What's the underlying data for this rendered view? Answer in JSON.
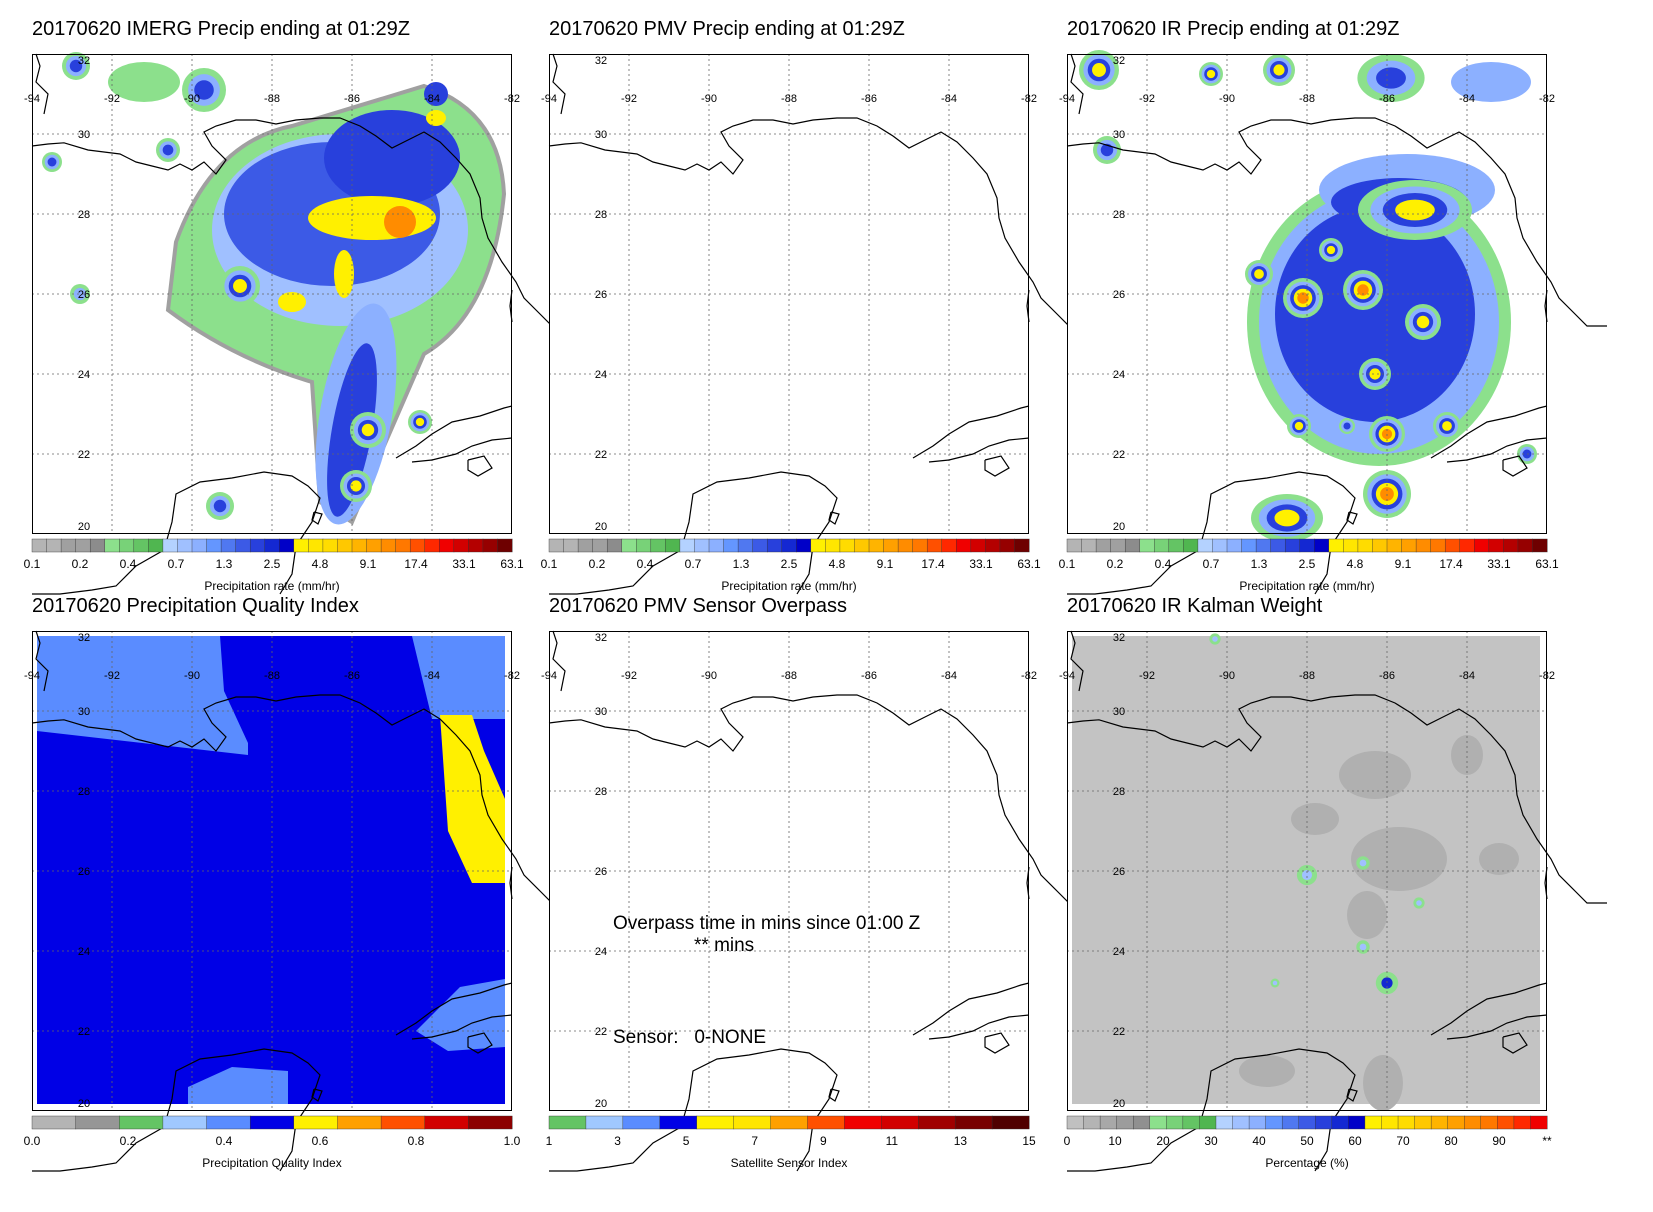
{
  "panels": [
    {
      "id": "imerg",
      "title": "20170620 IMERG Precip ending at 01:29Z",
      "colorbar_label": "Precipitation rate (mm/hr)",
      "ticks": [
        "0.1",
        "0.2",
        "0.4",
        "0.7",
        "1.3",
        "2.5",
        "4.8",
        "9.1",
        "17.4",
        "33.1",
        "63.1"
      ],
      "colors": [
        "#b4b4b4",
        "#b4b4b4",
        "#a0a0a0",
        "#a0a0a0",
        "#8c8c8c",
        "#8ce08c",
        "#78d278",
        "#64c464",
        "#50b650",
        "#b4d2ff",
        "#a0c0ff",
        "#8cb0ff",
        "#6496ff",
        "#5078f0",
        "#3c5ae6",
        "#2840dc",
        "#1428d2",
        "#0000c8",
        "#fff000",
        "#ffe600",
        "#ffdc00",
        "#ffc800",
        "#ffb400",
        "#ffa000",
        "#ff8c00",
        "#ff7800",
        "#ff5000",
        "#ff2800",
        "#f00000",
        "#d20000",
        "#b40000",
        "#960000",
        "#6e0000"
      ],
      "basemap": "plain",
      "fill": "precip"
    },
    {
      "id": "pmv",
      "title": "20170620 PMV Precip ending at 01:29Z",
      "colorbar_label": "Precipitation rate (mm/hr)",
      "ticks": [
        "0.1",
        "0.2",
        "0.4",
        "0.7",
        "1.3",
        "2.5",
        "4.8",
        "9.1",
        "17.4",
        "33.1",
        "63.1"
      ],
      "colors": [
        "#b4b4b4",
        "#b4b4b4",
        "#a0a0a0",
        "#a0a0a0",
        "#8c8c8c",
        "#8ce08c",
        "#78d278",
        "#64c464",
        "#50b650",
        "#b4d2ff",
        "#a0c0ff",
        "#8cb0ff",
        "#6496ff",
        "#5078f0",
        "#3c5ae6",
        "#2840dc",
        "#1428d2",
        "#0000c8",
        "#fff000",
        "#ffe600",
        "#ffdc00",
        "#ffc800",
        "#ffb400",
        "#ffa000",
        "#ff8c00",
        "#ff7800",
        "#ff5000",
        "#ff2800",
        "#f00000",
        "#d20000",
        "#b40000",
        "#960000",
        "#6e0000"
      ],
      "basemap": "plain",
      "fill": "none"
    },
    {
      "id": "ir",
      "title": "20170620 IR Precip ending at 01:29Z",
      "colorbar_label": "Precipitation rate (mm/hr)",
      "ticks": [
        "0.1",
        "0.2",
        "0.4",
        "0.7",
        "1.3",
        "2.5",
        "4.8",
        "9.1",
        "17.4",
        "33.1",
        "63.1"
      ],
      "colors": [
        "#b4b4b4",
        "#b4b4b4",
        "#a0a0a0",
        "#a0a0a0",
        "#8c8c8c",
        "#8ce08c",
        "#78d278",
        "#64c464",
        "#50b650",
        "#b4d2ff",
        "#a0c0ff",
        "#8cb0ff",
        "#6496ff",
        "#5078f0",
        "#3c5ae6",
        "#2840dc",
        "#1428d2",
        "#0000c8",
        "#fff000",
        "#ffe600",
        "#ffdc00",
        "#ffc800",
        "#ffb400",
        "#ffa000",
        "#ff8c00",
        "#ff7800",
        "#ff5000",
        "#ff2800",
        "#f00000",
        "#d20000",
        "#b40000",
        "#960000",
        "#6e0000"
      ],
      "basemap": "plain",
      "fill": "ir"
    },
    {
      "id": "pqi",
      "title": "20170620 Precipitation Quality Index",
      "colorbar_label": "Precipitation Quality Index",
      "ticks": [
        "0.0",
        "0.2",
        "0.4",
        "0.6",
        "0.8",
        "1.0"
      ],
      "colors": [
        "#b4b4b4",
        "#969696",
        "#64c464",
        "#a0c8ff",
        "#5a8cff",
        "#0000e6",
        "#fff000",
        "#ffa000",
        "#ff5000",
        "#d20000",
        "#8c0000"
      ],
      "basemap": "plain",
      "fill": "pqi"
    },
    {
      "id": "sensor",
      "title": "20170620 PMV Sensor Overpass",
      "colorbar_label": "Satellite Sensor Index",
      "ticks": [
        "1",
        "3",
        "5",
        "7",
        "9",
        "11",
        "13",
        "15"
      ],
      "colors": [
        "#64c464",
        "#a0c8ff",
        "#5a8cff",
        "#0000e6",
        "#fff000",
        "#ffe600",
        "#ffa000",
        "#ff5000",
        "#f00000",
        "#d20000",
        "#a00000",
        "#780000",
        "#500000"
      ],
      "basemap": "plain",
      "fill": "none",
      "overpass_line1": "Overpass time in mins since 01:00 Z",
      "overpass_line2": "** mins",
      "sensor_text": "Sensor:   0-NONE"
    },
    {
      "id": "kalman",
      "title": "20170620 IR Kalman Weight",
      "colorbar_label": "Percentage (%)",
      "ticks": [
        "0",
        "10",
        "20",
        "30",
        "40",
        "50",
        "60",
        "70",
        "80",
        "90",
        "**"
      ],
      "colors": [
        "#c0c0c0",
        "#b4b4b4",
        "#a8a8a8",
        "#9c9c9c",
        "#909090",
        "#8ce08c",
        "#78d278",
        "#64c464",
        "#50b650",
        "#b4d2ff",
        "#a0c0ff",
        "#8cb0ff",
        "#6496ff",
        "#5078f0",
        "#3c5ae6",
        "#2840dc",
        "#1428d2",
        "#0000c8",
        "#fff000",
        "#ffe600",
        "#ffdc00",
        "#ffc800",
        "#ffb400",
        "#ffa000",
        "#ff8c00",
        "#ff7800",
        "#ff5000",
        "#ff2800",
        "#f00000"
      ],
      "basemap": "plain",
      "fill": "kalman"
    }
  ],
  "map": {
    "lon_labels": [
      "-94",
      "-92",
      "-90",
      "-88",
      "-86",
      "-84",
      "-82"
    ],
    "lat_labels": [
      "32",
      "30",
      "28",
      "26",
      "24",
      "22",
      "20"
    ]
  }
}
